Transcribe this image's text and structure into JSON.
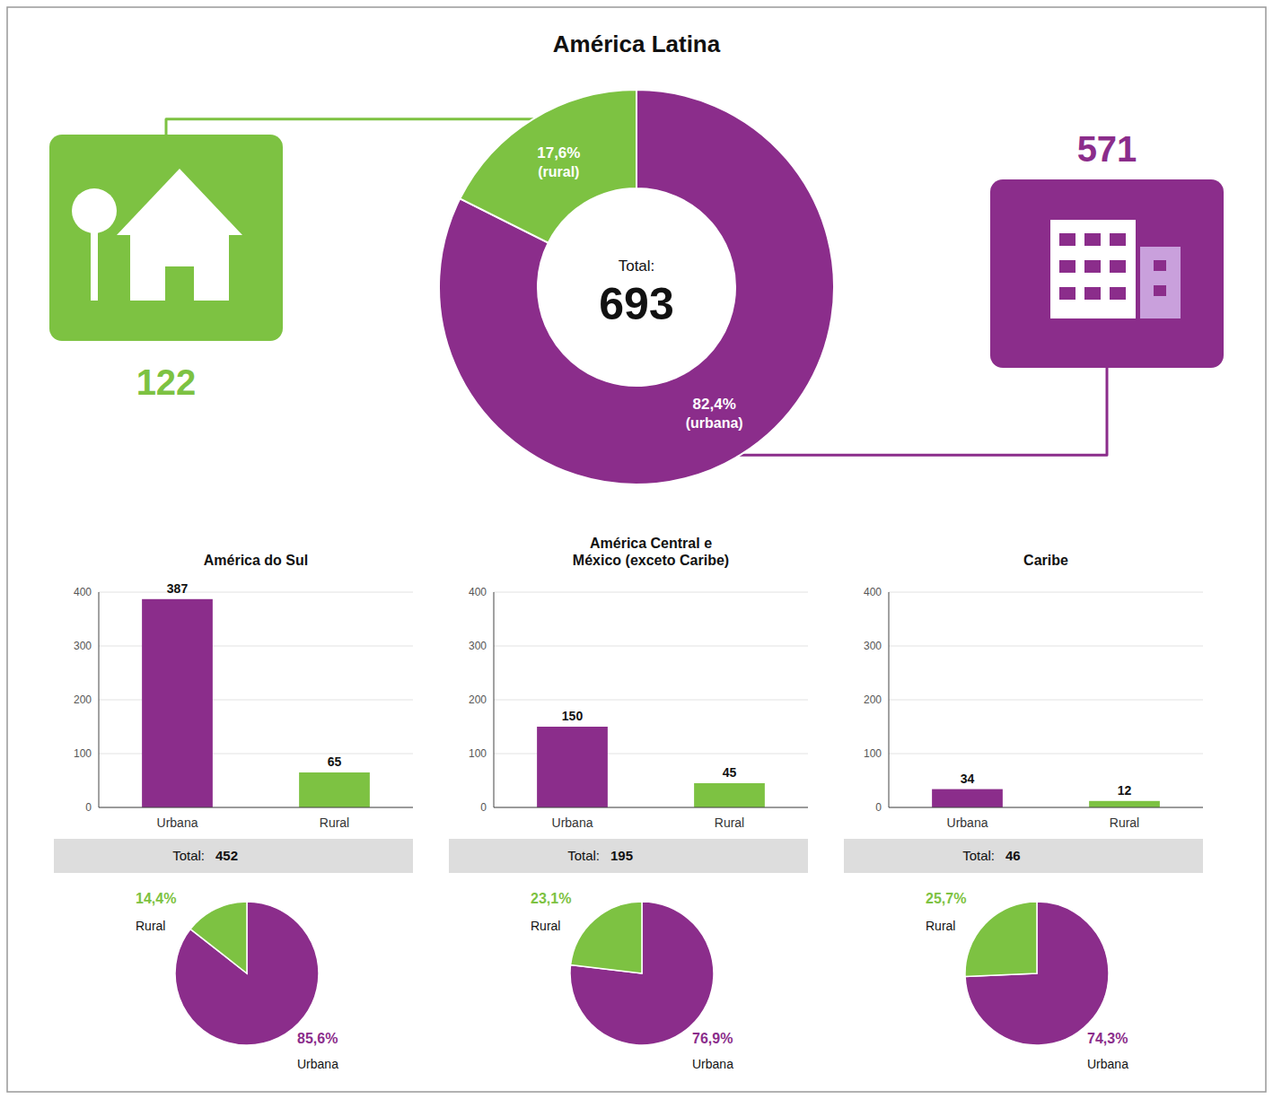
{
  "chart_data": [
    {
      "type": "donut",
      "title": "América Latina",
      "categories": [
        "(urbana)",
        "(rural)"
      ],
      "values": [
        82.4,
        17.6
      ],
      "value_labels": [
        "82,4%",
        "17,6%"
      ],
      "colors": [
        "#8B2D8B",
        "#7DC242"
      ],
      "data_labels": true,
      "annotations": [
        {
          "text": "Total:"
        },
        {
          "text": "693"
        },
        {
          "text": "571",
          "color": "#8B2D8B"
        },
        {
          "text": "122",
          "color": "#7DC242"
        }
      ]
    },
    {
      "type": "bar",
      "title": "América do Sul",
      "categories": [
        "Urbana",
        "Rural"
      ],
      "values": [
        387,
        65
      ],
      "colors": [
        "#8B2D8B",
        "#7DC242"
      ],
      "ylim": [
        0,
        400
      ],
      "yticks": [
        0,
        100,
        200,
        300,
        400
      ],
      "grid": true,
      "data_labels": true,
      "annotations": [
        {
          "text": "Total:"
        },
        {
          "text": "452"
        }
      ]
    },
    {
      "type": "pie",
      "categories": [
        "Urbana",
        "Rural"
      ],
      "values": [
        85.6,
        14.4
      ],
      "value_labels": [
        "85,6%",
        "14,4%"
      ],
      "colors": [
        "#8B2D8B",
        "#7DC242"
      ],
      "data_labels": true
    },
    {
      "type": "bar",
      "title": "América Central e\nMéxico (exceto Caribe)",
      "categories": [
        "Urbana",
        "Rural"
      ],
      "values": [
        150,
        45
      ],
      "colors": [
        "#8B2D8B",
        "#7DC242"
      ],
      "ylim": [
        0,
        400
      ],
      "yticks": [
        0,
        100,
        200,
        300,
        400
      ],
      "grid": true,
      "data_labels": true,
      "annotations": [
        {
          "text": "Total:"
        },
        {
          "text": "195"
        }
      ]
    },
    {
      "type": "pie",
      "categories": [
        "Urbana",
        "Rural"
      ],
      "values": [
        76.9,
        23.1
      ],
      "value_labels": [
        "76,9%",
        "23,1%"
      ],
      "colors": [
        "#8B2D8B",
        "#7DC242"
      ],
      "data_labels": true
    },
    {
      "type": "bar",
      "title": "Caribe",
      "categories": [
        "Urbana",
        "Rural"
      ],
      "values": [
        34,
        12
      ],
      "colors": [
        "#8B2D8B",
        "#7DC242"
      ],
      "ylim": [
        0,
        400
      ],
      "yticks": [
        0,
        100,
        200,
        300,
        400
      ],
      "grid": true,
      "data_labels": true,
      "annotations": [
        {
          "text": "Total:"
        },
        {
          "text": "46"
        }
      ]
    },
    {
      "type": "pie",
      "categories": [
        "Urbana",
        "Rural"
      ],
      "values": [
        74.3,
        25.7
      ],
      "value_labels": [
        "74,3%",
        "25,7%"
      ],
      "colors": [
        "#8B2D8B",
        "#7DC242"
      ],
      "data_labels": true
    }
  ]
}
